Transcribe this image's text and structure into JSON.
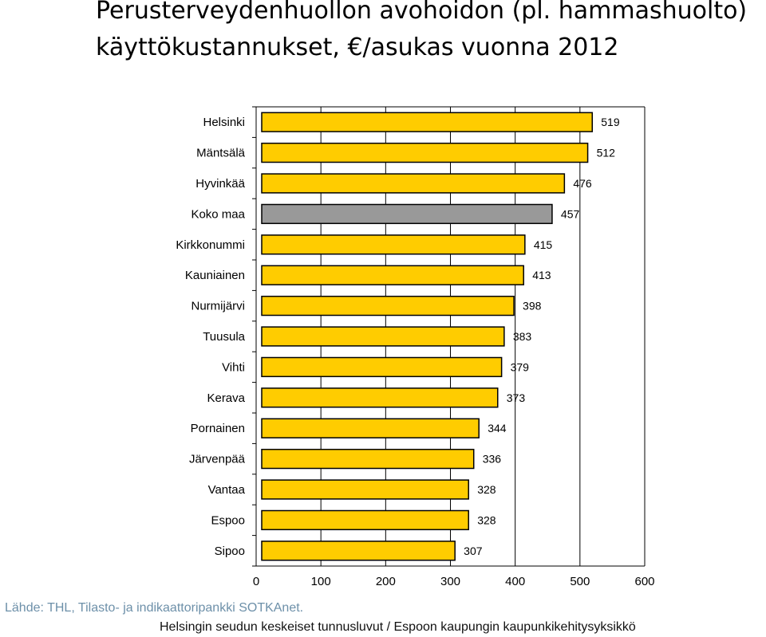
{
  "title": {
    "line1": "Perusterveydenhuollon avohoidon (pl. hammashuolto)",
    "line2": "käyttökustannukset, €/asukas vuonna 2012"
  },
  "chart_data": {
    "type": "bar",
    "orientation": "horizontal",
    "categories": [
      "Helsinki",
      "Mäntsälä",
      "Hyvinkää",
      "Koko maa",
      "Kirkkonummi",
      "Kauniainen",
      "Nurmijärvi",
      "Tuusula",
      "Vihti",
      "Kerava",
      "Pornainen",
      "Järvenpää",
      "Vantaa",
      "Espoo",
      "Sipoo"
    ],
    "values": [
      519,
      512,
      476,
      457,
      415,
      413,
      398,
      383,
      379,
      373,
      344,
      336,
      328,
      328,
      307
    ],
    "value_labels": [
      "519",
      "512",
      "476",
      "457",
      "415",
      "413",
      "398",
      "383",
      "379",
      "373",
      "344",
      "336",
      "328",
      "328",
      "307"
    ],
    "highlight_category": "Koko maa",
    "xlim": [
      0,
      600
    ],
    "xticks": [
      0,
      100,
      200,
      300,
      400,
      500,
      600
    ],
    "xtick_labels": [
      "0",
      "100",
      "200",
      "300",
      "400",
      "500",
      "600"
    ],
    "grid": "vertical",
    "legend": "none",
    "colors": {
      "bar": "#ffcc00",
      "highlight": "#999999",
      "edge": "#000000",
      "grid": "#000000"
    }
  },
  "source_text": "Lähde: THL, Tilasto- ja indikaattoripankki SOTKAnet.",
  "footer_text": "Helsingin seudun keskeiset tunnusluvut / Espoon kaupungin kaupunkikehitysyksikkö"
}
